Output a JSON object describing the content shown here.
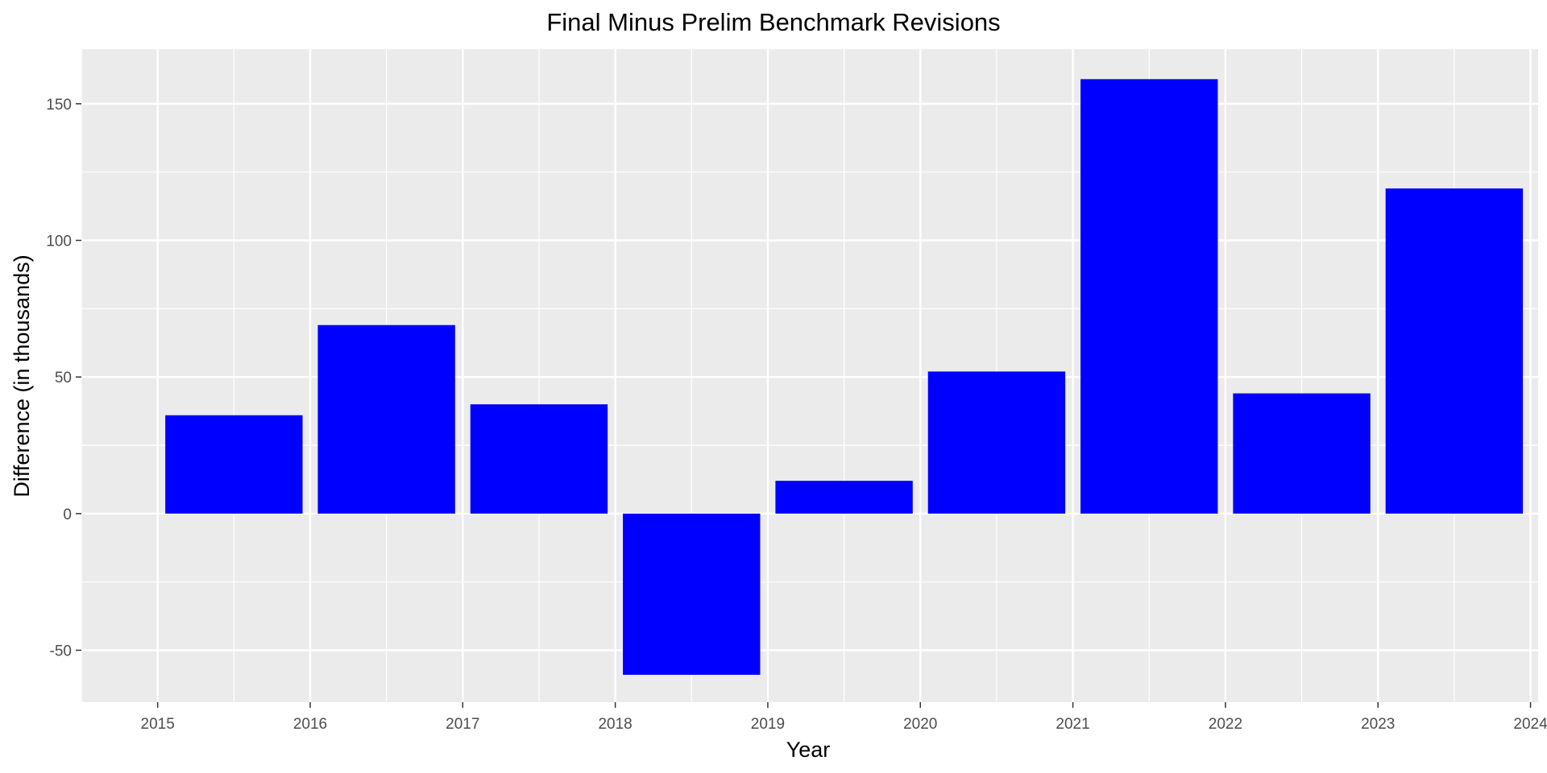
{
  "chart_data": {
    "type": "bar",
    "title": "Final Minus Prelim Benchmark Revisions",
    "xlabel": "Year",
    "ylabel": "Difference (in thousands)",
    "categories": [
      2015,
      2016,
      2017,
      2018,
      2019,
      2020,
      2021,
      2022,
      2023
    ],
    "values": [
      36,
      69,
      40,
      -59,
      12,
      52,
      159,
      44,
      119
    ],
    "x_ticks": [
      "2015",
      "2016",
      "2017",
      "2018",
      "2019",
      "2020",
      "2021",
      "2022",
      "2023",
      "2024"
    ],
    "y_ticks": [
      "-50",
      "0",
      "50",
      "100",
      "150"
    ],
    "xlim": [
      2014.5,
      2024.05
    ],
    "ylim": [
      -69,
      170
    ],
    "grid": true,
    "legend": "none",
    "colors": {
      "bar": "#0000ff",
      "panel": "#ebebeb",
      "grid": "#ffffff"
    }
  }
}
